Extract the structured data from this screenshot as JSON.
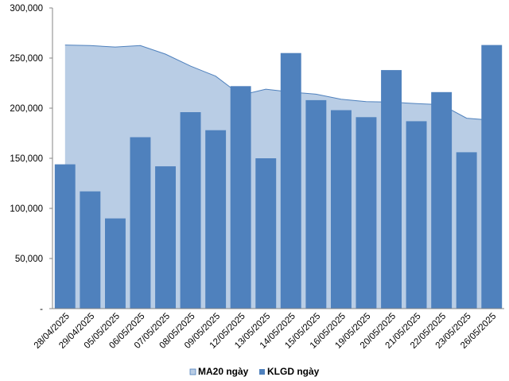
{
  "chart_data": {
    "type": "bar",
    "categories": [
      "28/04/2025",
      "29/04/2025",
      "05/05/2025",
      "06/05/2025",
      "07/05/2025",
      "08/05/2025",
      "09/05/2025",
      "12/05/2025",
      "13/05/2025",
      "14/05/2025",
      "15/05/2025",
      "16/05/2025",
      "19/05/2025",
      "20/05/2025",
      "21/05/2025",
      "22/05/2025",
      "23/05/2025",
      "26/05/2025"
    ],
    "series": [
      {
        "name": "MA20 ngày",
        "type": "area",
        "color": "#b9cde5",
        "line_color": "#4f81bd",
        "values": [
          263000,
          262500,
          261000,
          262500,
          254000,
          242000,
          232000,
          213000,
          219000,
          216000,
          214000,
          209000,
          206500,
          206000,
          204500,
          203500,
          190000,
          188000
        ]
      },
      {
        "name": "KLGD ngày",
        "type": "bar",
        "color": "#4f81bd",
        "values": [
          144000,
          117000,
          90000,
          171000,
          142000,
          196000,
          178000,
          222000,
          150000,
          255000,
          208000,
          198000,
          191000,
          238000,
          187000,
          216000,
          156000,
          263000
        ]
      }
    ],
    "ylim": [
      0,
      300000
    ],
    "yticks": [
      0,
      50000,
      100000,
      150000,
      200000,
      250000,
      300000
    ],
    "ytick_labels": [
      "-",
      "50,000",
      "100,000",
      "150,000",
      "200,000",
      "250,000",
      "300,000"
    ],
    "grid": false,
    "legend_position": "bottom",
    "xlabel": "",
    "ylabel": ""
  }
}
